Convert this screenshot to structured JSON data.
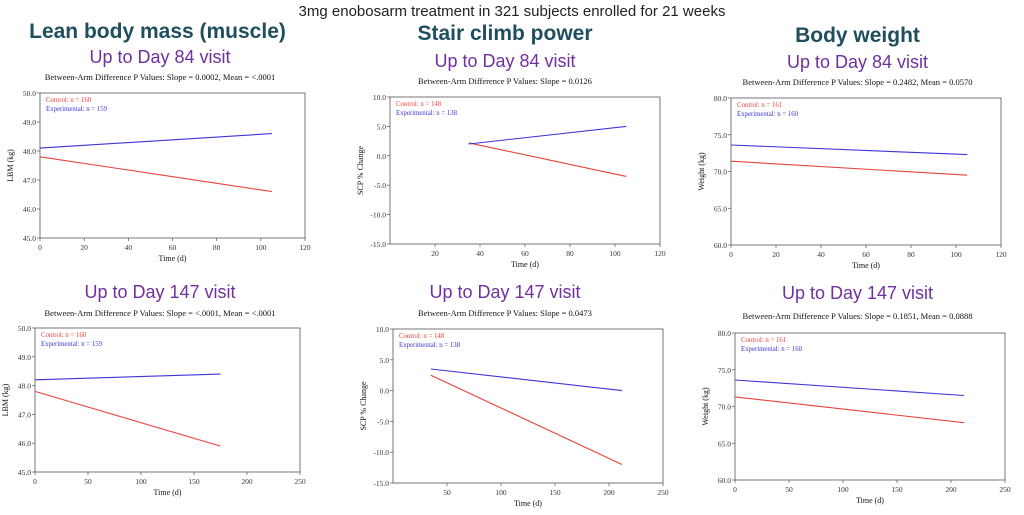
{
  "page_title": "3mg enobosarm treatment in 321 subjects enrolled for 21 weeks",
  "columns": [
    {
      "heading": "Lean body mass (muscle)",
      "visit_top": "Up to Day 84 visit",
      "visit_bottom": "Up to Day 147 visit"
    },
    {
      "heading": "Stair climb power",
      "visit_top": "Up to Day 84 visit",
      "visit_bottom": "Up to Day 147 visit"
    },
    {
      "heading": "Body weight",
      "visit_top": "Up to Day 84 visit",
      "visit_bottom": "Up to Day 147 visit"
    }
  ],
  "colors": {
    "control": "#e8433d",
    "experimental": "#3b35d6",
    "heading": "#1f4e5f",
    "visit": "#7030a0"
  },
  "chart_data": [
    {
      "type": "line",
      "pvalue": "Between-Arm Difference P Values: Slope = 0.0002, Mean = <.0001",
      "xlabel": "Time (d)",
      "ylabel": "LBM (kg)",
      "xlim": [
        0,
        120
      ],
      "ylim": [
        45.0,
        50.0
      ],
      "xticks": [
        0,
        20,
        40,
        60,
        80,
        100,
        120
      ],
      "xtick_labels": [
        "0",
        "20",
        "40",
        "60",
        "80",
        "100",
        "120"
      ],
      "yticks": [
        45.0,
        46.0,
        47.0,
        48.0,
        49.0,
        50.0
      ],
      "ytick_labels": [
        "45.0",
        "46.0",
        "47.0",
        "48.0",
        "49.0",
        "50.0"
      ],
      "series": [
        {
          "name": "Control: n = 160",
          "x": [
            0,
            105
          ],
          "y": [
            47.8,
            46.6
          ]
        },
        {
          "name": "Experimental: n = 159",
          "x": [
            0,
            105
          ],
          "y": [
            48.1,
            48.6
          ]
        }
      ]
    },
    {
      "type": "line",
      "pvalue": "Between-Arm Difference P Values: Slope = 0.0126",
      "xlabel": "Time (d)",
      "ylabel": "SCP % Change",
      "xlim": [
        0,
        120
      ],
      "ylim": [
        -15.0,
        10.0
      ],
      "xticks": [
        20,
        40,
        60,
        80,
        100,
        120
      ],
      "xtick_labels": [
        "20",
        "40",
        "60",
        "80",
        "100",
        "120"
      ],
      "yticks": [
        -15.0,
        -10.0,
        -5.0,
        0.0,
        5.0,
        10.0
      ],
      "ytick_labels": [
        "-15.0",
        "-10.0",
        "-5.0",
        "0.0",
        "5.0",
        "10.0"
      ],
      "series": [
        {
          "name": "Control: n = 148",
          "x": [
            35,
            105
          ],
          "y": [
            2.2,
            -3.5
          ]
        },
        {
          "name": "Experimental: n = 138",
          "x": [
            35,
            105
          ],
          "y": [
            2.0,
            5.0
          ]
        }
      ]
    },
    {
      "type": "line",
      "pvalue": "Between-Arm Difference P Values: Slope = 0.2482, Mean = 0.0570",
      "xlabel": "Time (d)",
      "ylabel": "Weight (kg)",
      "xlim": [
        0,
        120
      ],
      "ylim": [
        60.0,
        80.0
      ],
      "xticks": [
        0,
        20,
        40,
        60,
        80,
        100,
        120
      ],
      "xtick_labels": [
        "0",
        "20",
        "40",
        "60",
        "80",
        "100",
        "120"
      ],
      "yticks": [
        60.0,
        65.0,
        70.0,
        75.0,
        80.0
      ],
      "ytick_labels": [
        "60.0",
        "65.0",
        "70.0",
        "75.0",
        "80.0"
      ],
      "series": [
        {
          "name": "Control: n = 161",
          "x": [
            0,
            105
          ],
          "y": [
            71.4,
            69.5
          ]
        },
        {
          "name": "Experimental: n = 160",
          "x": [
            0,
            105
          ],
          "y": [
            73.6,
            72.3
          ]
        }
      ]
    },
    {
      "type": "line",
      "pvalue": "Between-Arm Difference P Values: Slope = <.0001, Mean = <.0001",
      "xlabel": "Time (d)",
      "ylabel": "LBM (kg)",
      "xlim": [
        0,
        250
      ],
      "ylim": [
        45.0,
        50.0
      ],
      "xticks": [
        0,
        50,
        100,
        150,
        200,
        250
      ],
      "xtick_labels": [
        "0",
        "50",
        "100",
        "150",
        "200",
        "250"
      ],
      "yticks": [
        45.0,
        46.0,
        47.0,
        48.0,
        49.0,
        50.0
      ],
      "ytick_labels": [
        "45.0",
        "46.0",
        "47.0",
        "48.0",
        "49.0",
        "50.0"
      ],
      "series": [
        {
          "name": "Control: n = 160",
          "x": [
            0,
            175
          ],
          "y": [
            47.8,
            45.9
          ]
        },
        {
          "name": "Experimental: n = 159",
          "x": [
            0,
            175
          ],
          "y": [
            48.2,
            48.4
          ]
        }
      ]
    },
    {
      "type": "line",
      "pvalue": "Between-Arm Difference P Values: Slope = 0.0473",
      "xlabel": "Time (d)",
      "ylabel": "SCP % Change",
      "xlim": [
        0,
        250
      ],
      "ylim": [
        -15.0,
        10.0
      ],
      "xticks": [
        50,
        100,
        150,
        200,
        250
      ],
      "xtick_labels": [
        "50",
        "100",
        "150",
        "200",
        "250"
      ],
      "yticks": [
        -15.0,
        -10.0,
        -5.0,
        0.0,
        5.0,
        10.0
      ],
      "ytick_labels": [
        "-15.0",
        "-10.0",
        "-5.0",
        "0.0",
        "5.0",
        "10.0"
      ],
      "series": [
        {
          "name": "Control: n = 148",
          "x": [
            35,
            212
          ],
          "y": [
            2.5,
            -12.0
          ]
        },
        {
          "name": "Experimental: n = 138",
          "x": [
            35,
            212
          ],
          "y": [
            3.5,
            0.0
          ]
        }
      ]
    },
    {
      "type": "line",
      "pvalue": "Between-Arm Difference P Values: Slope = 0.1851, Mean = 0.0888",
      "xlabel": "Time (d)",
      "ylabel": "Weight (kg)",
      "xlim": [
        0,
        250
      ],
      "ylim": [
        60.0,
        80.0
      ],
      "xticks": [
        0,
        50,
        100,
        150,
        200,
        250
      ],
      "xtick_labels": [
        "0",
        "50",
        "100",
        "150",
        "200",
        "250"
      ],
      "yticks": [
        60.0,
        65.0,
        70.0,
        75.0,
        80.0
      ],
      "ytick_labels": [
        "60.0",
        "65.0",
        "70.0",
        "75.0",
        "80.0"
      ],
      "series": [
        {
          "name": "Control: n = 161",
          "x": [
            0,
            212
          ],
          "y": [
            71.3,
            67.8
          ]
        },
        {
          "name": "Experimental: n = 160",
          "x": [
            0,
            212
          ],
          "y": [
            73.6,
            71.5
          ]
        }
      ]
    }
  ]
}
